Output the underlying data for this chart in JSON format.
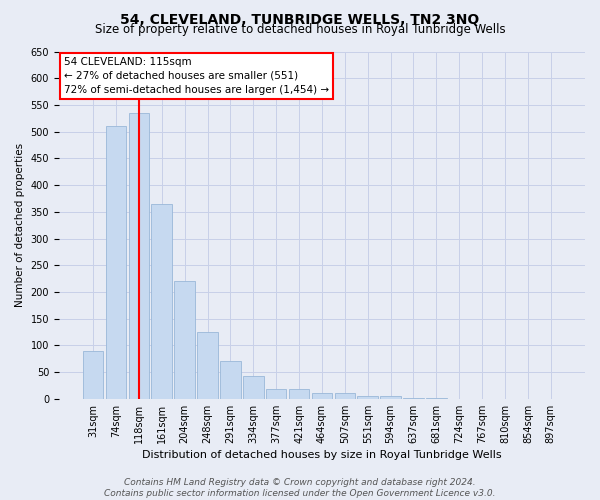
{
  "title": "54, CLEVELAND, TUNBRIDGE WELLS, TN2 3NQ",
  "subtitle": "Size of property relative to detached houses in Royal Tunbridge Wells",
  "xlabel": "Distribution of detached houses by size in Royal Tunbridge Wells",
  "ylabel": "Number of detached properties",
  "categories": [
    "31sqm",
    "74sqm",
    "118sqm",
    "161sqm",
    "204sqm",
    "248sqm",
    "291sqm",
    "334sqm",
    "377sqm",
    "421sqm",
    "464sqm",
    "507sqm",
    "551sqm",
    "594sqm",
    "637sqm",
    "681sqm",
    "724sqm",
    "767sqm",
    "810sqm",
    "854sqm",
    "897sqm"
  ],
  "values": [
    90,
    510,
    535,
    365,
    220,
    125,
    70,
    42,
    18,
    18,
    10,
    10,
    5,
    5,
    2,
    2,
    0,
    0,
    0,
    0,
    0
  ],
  "bar_color": "#c6d9f0",
  "bar_edge_color": "#9ab8d8",
  "red_line_index": 2,
  "annotation_line1": "54 CLEVELAND: 115sqm",
  "annotation_line2": "← 27% of detached houses are smaller (551)",
  "annotation_line3": "72% of semi-detached houses are larger (1,454) →",
  "ylim": [
    0,
    650
  ],
  "yticks": [
    0,
    50,
    100,
    150,
    200,
    250,
    300,
    350,
    400,
    450,
    500,
    550,
    600,
    650
  ],
  "footer_line1": "Contains HM Land Registry data © Crown copyright and database right 2024.",
  "footer_line2": "Contains public sector information licensed under the Open Government Licence v3.0.",
  "grid_color": "#c8d0e8",
  "bg_color": "#e8ecf5",
  "title_fontsize": 10,
  "subtitle_fontsize": 8.5,
  "xlabel_fontsize": 8,
  "ylabel_fontsize": 7.5,
  "tick_fontsize": 7,
  "annot_fontsize": 7.5,
  "footer_fontsize": 6.5
}
